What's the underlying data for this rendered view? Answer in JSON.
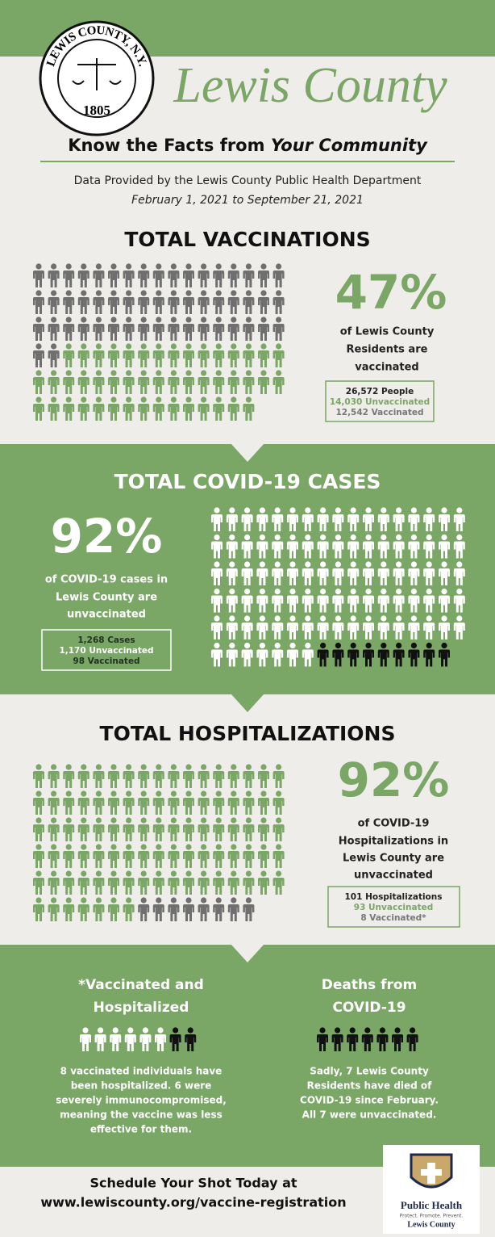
{
  "header": {
    "seal_name": "LEWIS COUNTY, N.Y.",
    "seal_year": "1805",
    "title": "Lewis County",
    "tagline": "Know the Facts from",
    "tagline_emphasis": "Your Community",
    "source": "Data Provided by the Lewis County Public Health Department",
    "dates": "February 1, 2021 to September 21, 2021"
  },
  "vaccinations": {
    "title": "TOTAL VACCINATIONS",
    "percent": "47%",
    "caption": [
      "of Lewis County",
      "Residents are",
      "vaccinated"
    ],
    "box": [
      "26,572 People",
      "14,030 Unvaccinated",
      "12,542 Vaccinated"
    ]
  },
  "cases": {
    "title": "TOTAL COVID-19 CASES",
    "percent": "92%",
    "caption": [
      "of COVID-19 cases in",
      "Lewis County are",
      "unvaccinated"
    ],
    "box": [
      "1,268 Cases",
      "1,170 Unvaccinated",
      "98 Vaccinated"
    ]
  },
  "hospitalizations": {
    "title": "TOTAL HOSPITALIZATIONS",
    "percent": "92%",
    "caption": [
      "of COVID-19",
      "Hospitalizations in",
      "Lewis County are",
      "unvaccinated"
    ],
    "box": [
      "101 Hospitalizations",
      "93 Unvaccinated",
      "8 Vaccinated*"
    ]
  },
  "vaccinated_hospitalized": {
    "title": [
      "*Vaccinated and",
      "Hospitalized"
    ],
    "text": [
      "8 vaccinated individuals have",
      "been hospitalized. 6 were",
      "severely immunocompromised,",
      "meaning the vaccine was less",
      "effective for them."
    ]
  },
  "deaths": {
    "title": [
      "Deaths from",
      "COVID-19"
    ],
    "text": [
      "Sadly, 7 Lewis County",
      "Residents have died of",
      "COVID-19 since February.",
      "All 7 were unvaccinated."
    ]
  },
  "footer": {
    "cta": "Schedule Your Shot Today at",
    "url": "www.lewiscounty.org/vaccine-registration",
    "logo_title": "Public Health",
    "logo_motto": "Protect. Promote. Prevent.",
    "logo_county": "Lewis County"
  }
}
